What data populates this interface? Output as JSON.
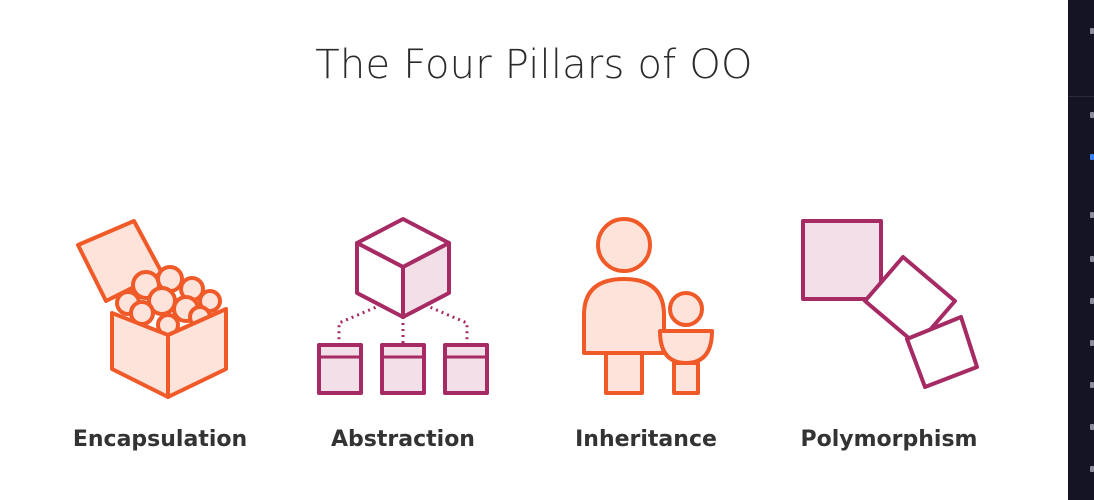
{
  "slide": {
    "title": "The Four Pillars of OO",
    "pillars": [
      {
        "label": "Encapsulation",
        "icon": "open-box-with-balls-icon"
      },
      {
        "label": "Abstraction",
        "icon": "cube-hierarchy-icon"
      },
      {
        "label": "Inheritance",
        "icon": "parent-and-child-icon"
      },
      {
        "label": "Polymorphism",
        "icon": "rotating-squares-icon"
      }
    ]
  },
  "colors": {
    "orange": "#f05a28",
    "orange_fill": "#fde3da",
    "magenta": "#a62a63",
    "magenta_fill": "#f3dfe7",
    "title_text": "#2b2b2b",
    "label_text": "#333333",
    "side_strip": "#141423"
  }
}
